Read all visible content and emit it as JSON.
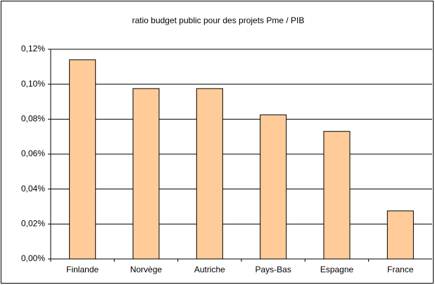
{
  "chart_data": {
    "type": "bar",
    "title": "ratio budget public pour des projets Pme / PIB",
    "categories": [
      "Finlande",
      "Norvège",
      "Autriche",
      "Pays-Bas",
      "Espagne",
      "France"
    ],
    "values": [
      0.114,
      0.0975,
      0.0975,
      0.0825,
      0.073,
      0.0275
    ],
    "color": "#ffcc99",
    "ylim": [
      0,
      0.12
    ],
    "yticks": [
      {
        "value": 0,
        "label": "0,00%"
      },
      {
        "value": 0.02,
        "label": "0,02%"
      },
      {
        "value": 0.04,
        "label": "0,04%"
      },
      {
        "value": 0.06,
        "label": "0,06%"
      },
      {
        "value": 0.08,
        "label": "0,08%"
      },
      {
        "value": 0.1,
        "label": "0,10%"
      },
      {
        "value": 0.12,
        "label": "0,12%"
      }
    ],
    "grid": true
  }
}
